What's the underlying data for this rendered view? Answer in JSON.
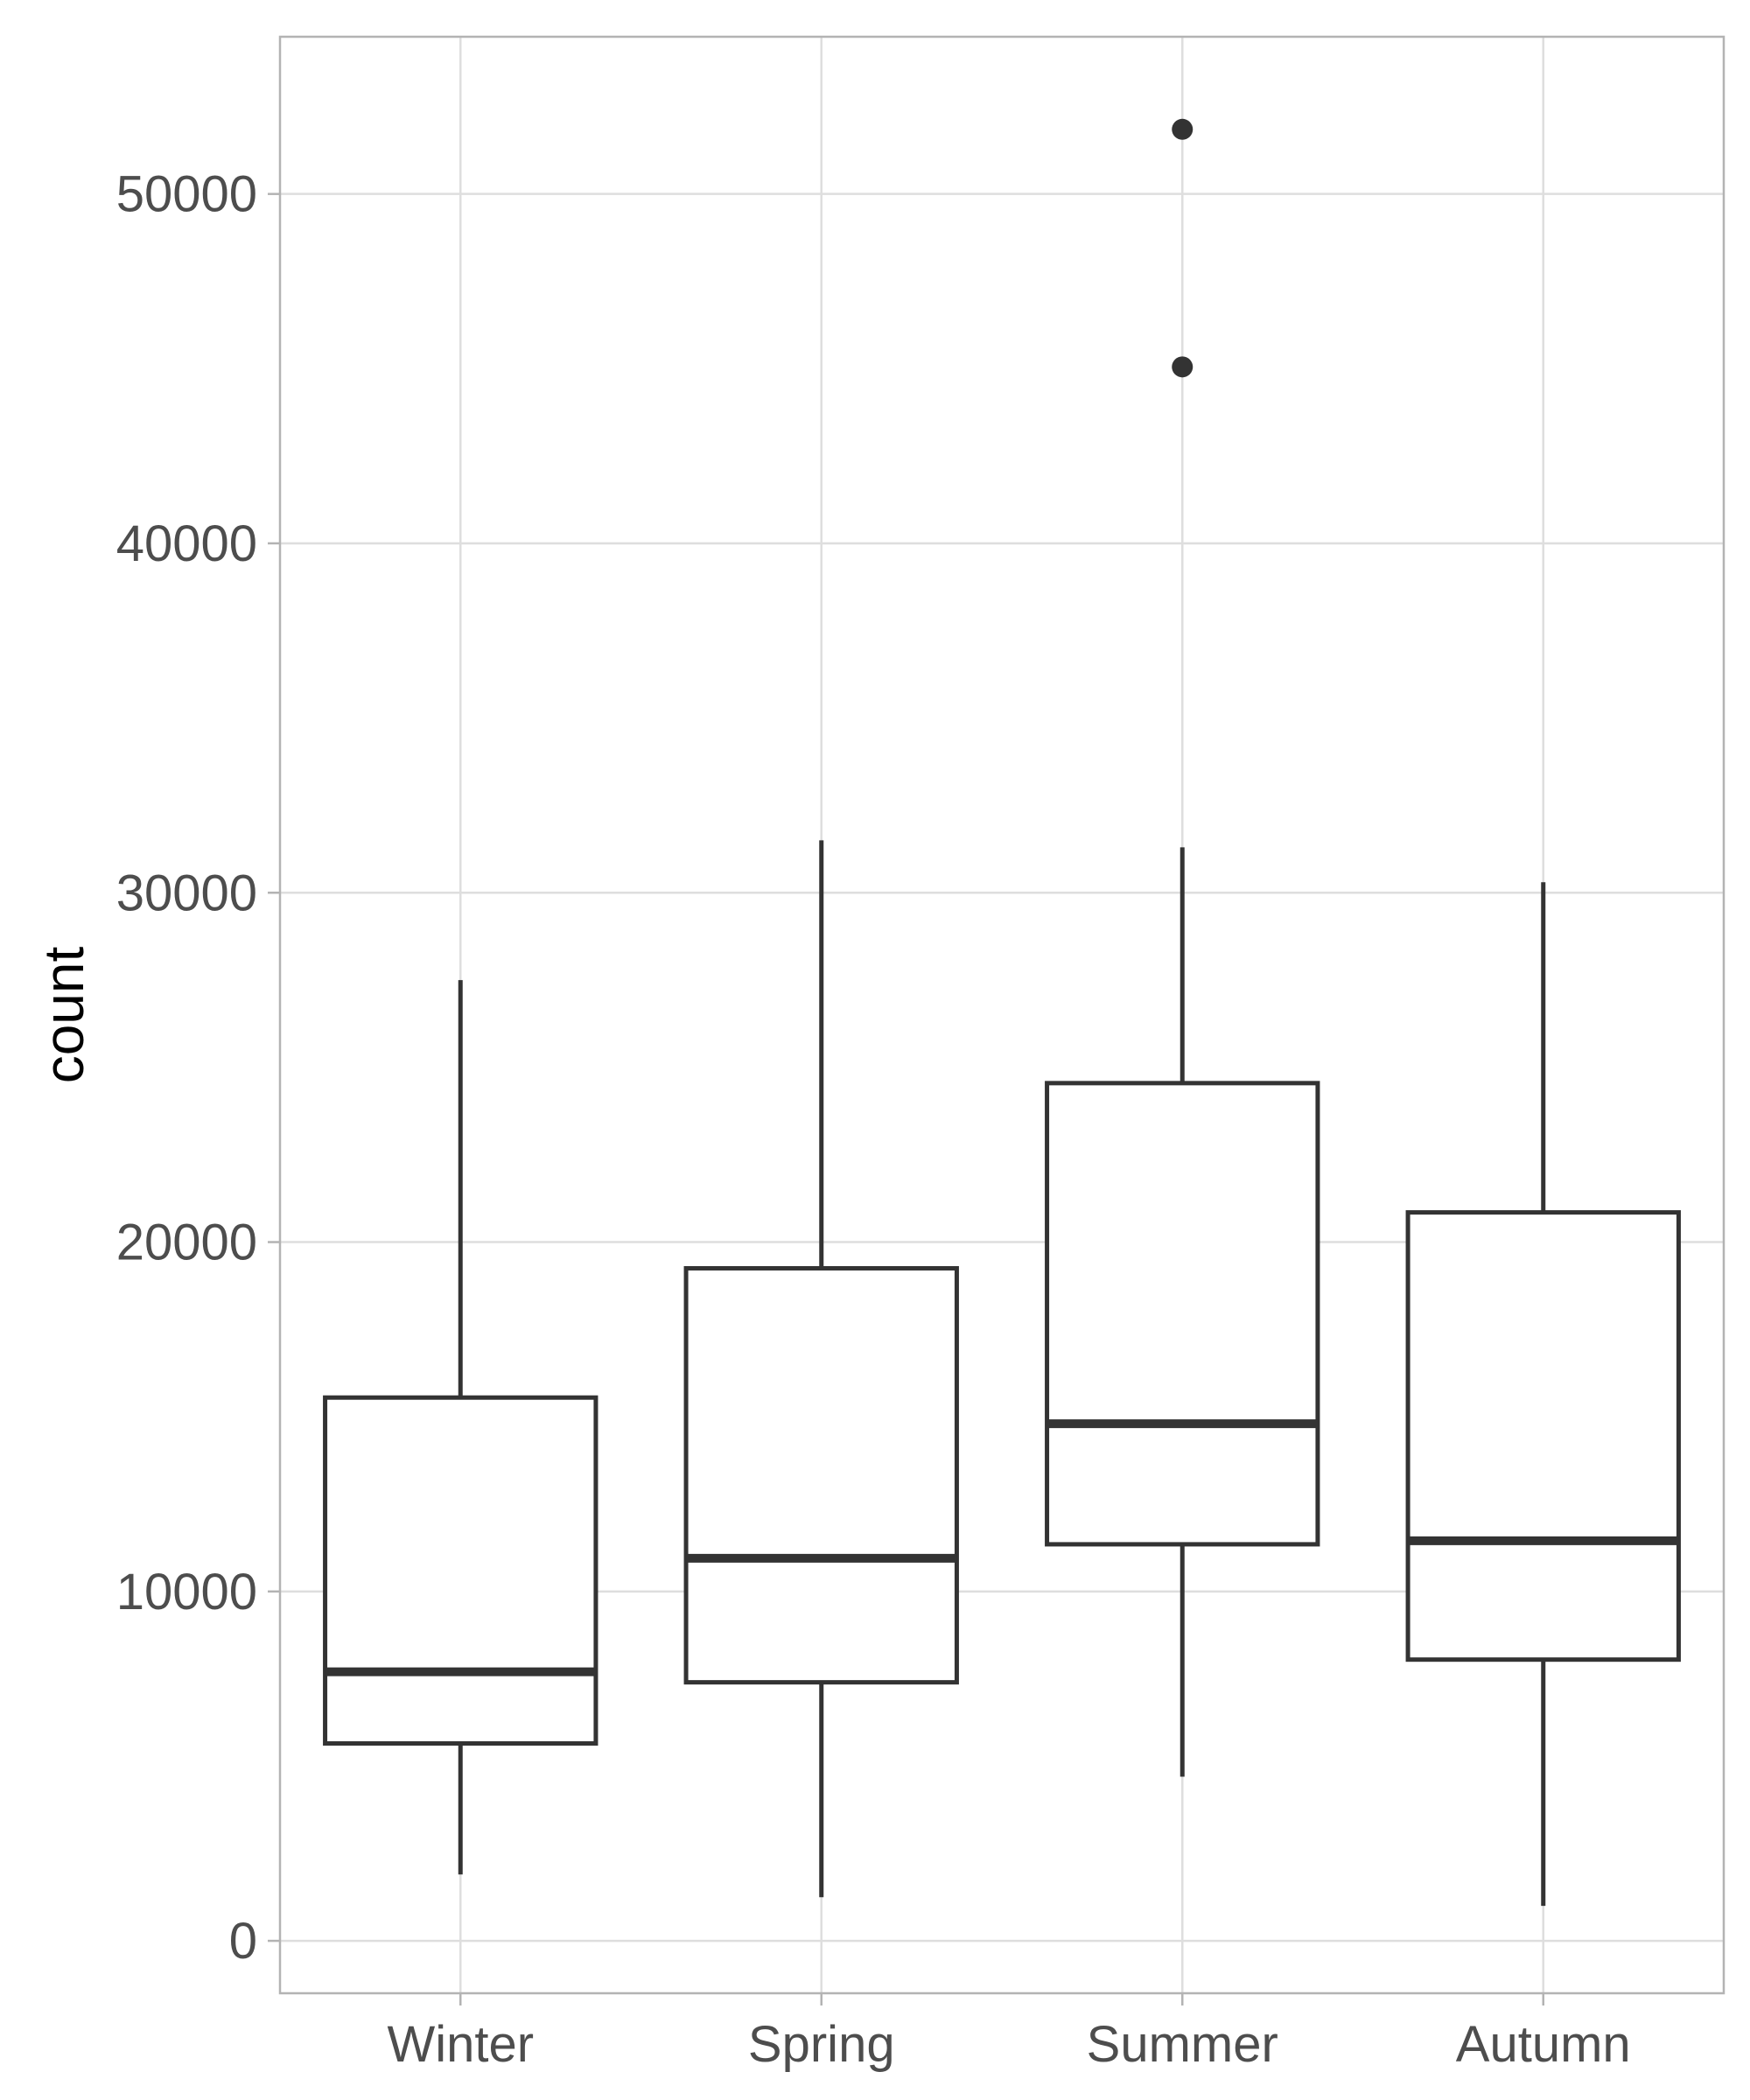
{
  "chart_data": {
    "type": "boxplot",
    "title": "",
    "xlabel": "",
    "ylabel": "count",
    "ylim": [
      -1500,
      54500
    ],
    "y_ticks": [
      0,
      10000,
      20000,
      30000,
      40000,
      50000
    ],
    "y_tick_labels": [
      "0",
      "10000",
      "20000",
      "30000",
      "40000",
      "50000"
    ],
    "grid": true,
    "legend": "none",
    "categories": [
      "Winter",
      "Spring",
      "Summer",
      "Autumn"
    ],
    "boxes": [
      {
        "category": "Winter",
        "whisker_low": 1900,
        "q1": 5650,
        "median": 7700,
        "q3": 15550,
        "whisker_high": 27500,
        "outliers": []
      },
      {
        "category": "Spring",
        "whisker_low": 1250,
        "q1": 7400,
        "median": 10950,
        "q3": 19250,
        "whisker_high": 31500,
        "outliers": []
      },
      {
        "category": "Summer",
        "whisker_low": 4700,
        "q1": 11350,
        "median": 14800,
        "q3": 24550,
        "whisker_high": 31300,
        "outliers": [
          45050,
          51850
        ]
      },
      {
        "category": "Autumn",
        "whisker_low": 1000,
        "q1": 8050,
        "median": 11450,
        "q3": 20850,
        "whisker_high": 30300,
        "outliers": []
      }
    ],
    "colors": {
      "box_stroke": "#333333",
      "box_fill": "#ffffff",
      "grid": "#dedede",
      "panel_border": "#b3b3b3",
      "tick_text": "#4d4d4d",
      "axis_title": "#000000"
    }
  }
}
